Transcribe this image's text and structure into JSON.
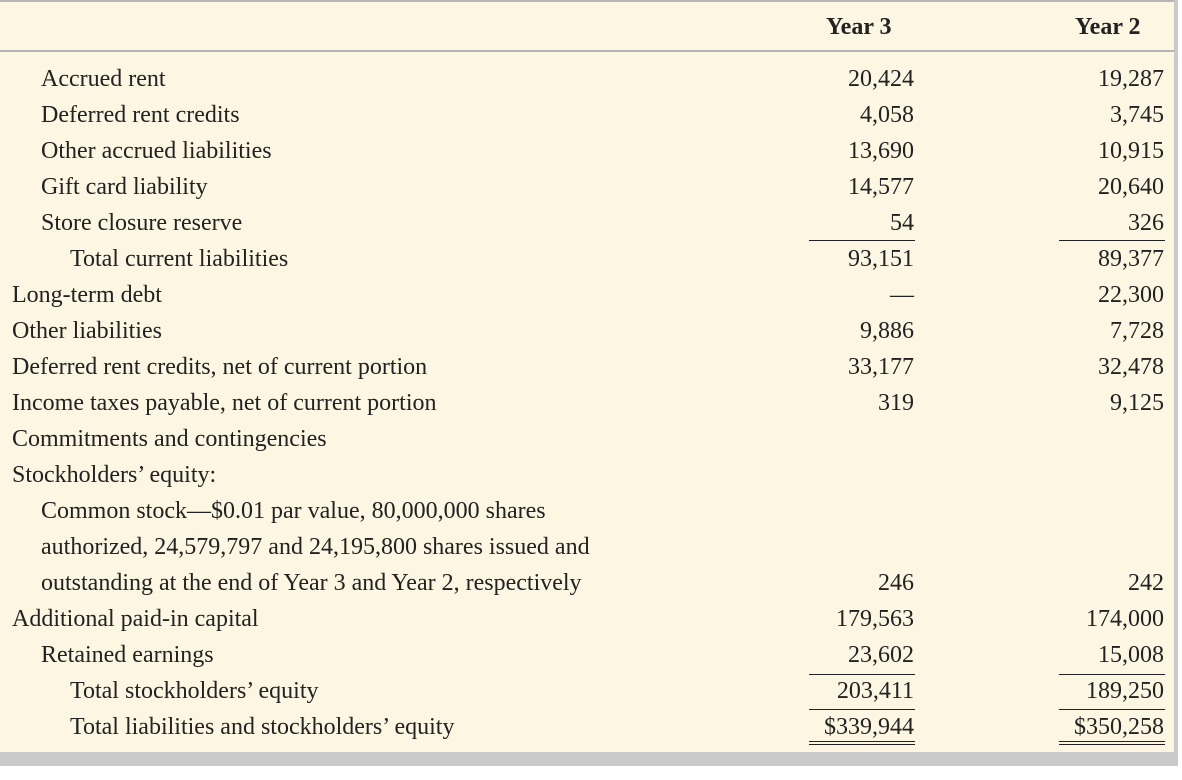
{
  "columns": {
    "year3": "Year 3",
    "year2": "Year 2"
  },
  "rows": [
    {
      "label": "Accrued rent",
      "y3": "20,424",
      "y2": "19,287"
    },
    {
      "label": "Deferred rent credits",
      "y3": "4,058",
      "y2": "3,745"
    },
    {
      "label": "Other accrued liabilities",
      "y3": "13,690",
      "y2": "10,915"
    },
    {
      "label": "Gift card liability",
      "y3": "14,577",
      "y2": "20,640"
    },
    {
      "label": "Store closure reserve",
      "y3": "54",
      "y2": "326"
    },
    {
      "label": "Total current liabilities",
      "y3": "93,151",
      "y2": "89,377"
    },
    {
      "label": "Long-term debt",
      "y3": "—",
      "y2": "22,300"
    },
    {
      "label": "Other liabilities",
      "y3": "9,886",
      "y2": "7,728"
    },
    {
      "label": "Deferred rent credits, net of current portion",
      "y3": "33,177",
      "y2": "32,478"
    },
    {
      "label": "Income taxes payable, net of current portion",
      "y3": "319",
      "y2": "9,125"
    },
    {
      "label": "Commitments and contingencies",
      "y3": "",
      "y2": ""
    },
    {
      "label": "Stockholders’ equity:",
      "y3": "",
      "y2": ""
    },
    {
      "label": "Common stock—$0.01 par value, 80,000,000 shares",
      "y3": "",
      "y2": ""
    },
    {
      "label": "authorized, 24,579,797 and 24,195,800 shares issued and",
      "y3": "",
      "y2": ""
    },
    {
      "label": "outstanding at the end of Year 3 and Year 2, respectively",
      "y3": "246",
      "y2": "242"
    },
    {
      "label": "Additional paid-in capital",
      "y3": "179,563",
      "y2": "174,000"
    },
    {
      "label": "Retained earnings",
      "y3": "23,602",
      "y2": "15,008"
    },
    {
      "label": "Total stockholders’ equity",
      "y3": "203,411",
      "y2": "189,250"
    },
    {
      "label": "Total liabilities and stockholders’ equity",
      "y3": "$339,944",
      "y2": "$350,258"
    }
  ]
}
